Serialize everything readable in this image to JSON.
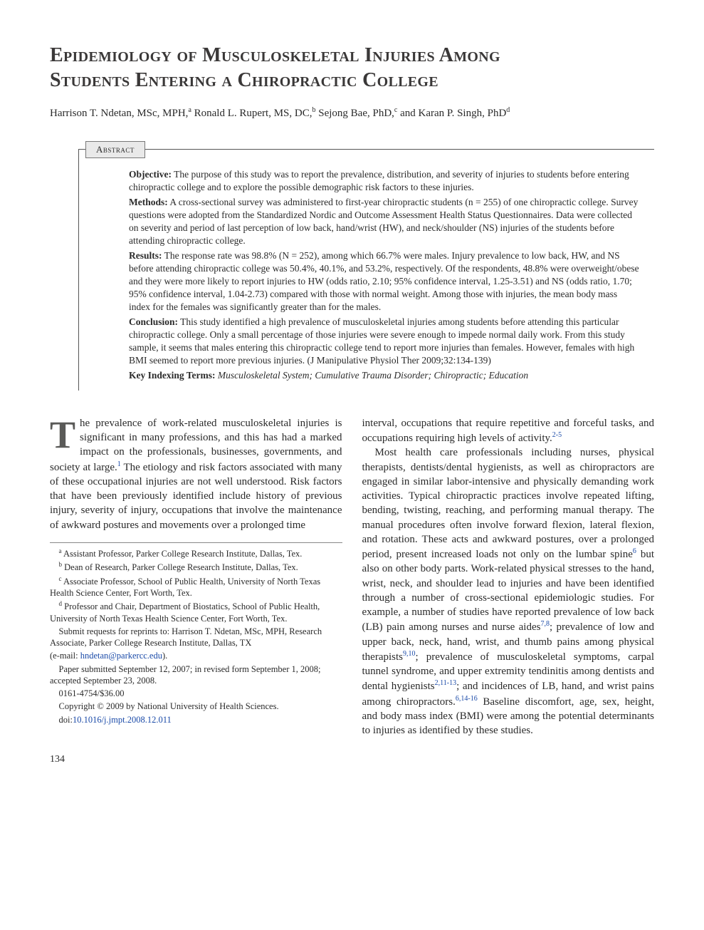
{
  "title_line1": "Epidemiology of Musculoskeletal Injuries Among",
  "title_line2": "Students Entering a Chiropractic College",
  "authors_html": "Harrison T. Ndetan, MSc, MPH,<sup>a</sup> Ronald L. Rupert, MS, DC,<sup>b</sup> Sejong Bae, PhD,<sup>c</sup> and Karan P. Singh, PhD<sup>d</sup>",
  "abstract_label": "Abstract",
  "abstract": {
    "objective_label": "Objective:",
    "objective": "The purpose of this study was to report the prevalence, distribution, and severity of injuries to students before entering chiropractic college and to explore the possible demographic risk factors to these injuries.",
    "methods_label": "Methods:",
    "methods": "A cross-sectional survey was administered to first-year chiropractic students (n = 255) of one chiropractic college. Survey questions were adopted from the Standardized Nordic and Outcome Assessment Health Status Questionnaires. Data were collected on severity and period of last perception of low back, hand/wrist (HW), and neck/shoulder (NS) injuries of the students before attending chiropractic college.",
    "results_label": "Results:",
    "results": "The response rate was 98.8% (N = 252), among which 66.7% were males. Injury prevalence to low back, HW, and NS before attending chiropractic college was 50.4%, 40.1%, and 53.2%, respectively. Of the respondents, 48.8% were overweight/obese and they were more likely to report injuries to HW (odds ratio, 2.10; 95% confidence interval, 1.25-3.51) and NS (odds ratio, 1.70; 95% confidence interval, 1.04-2.73) compared with those with normal weight. Among those with injuries, the mean body mass index for the females was significantly greater than for the males.",
    "conclusion_label": "Conclusion:",
    "conclusion": "This study identified a high prevalence of musculoskeletal injuries among students before attending this particular chiropractic college. Only a small percentage of those injuries were severe enough to impede normal daily work. From this study sample, it seems that males entering this chiropractic college tend to report more injuries than females. However, females with high BMI seemed to report more previous injuries. (J Manipulative Physiol Ther 2009;32:134-139)",
    "key_terms_label": "Key Indexing Terms:",
    "key_terms": "Musculoskeletal System; Cumulative Trauma Disorder; Chiropractic; Education"
  },
  "body": {
    "p1_html": "<span class=\"dropcap\">T</span>he prevalence of work-related musculoskeletal injuries is significant in many professions, and this has had a marked impact on the professionals, businesses, governments, and society at large.<span class=\"ref-sup\">1</span> The etiology and risk factors associated with many of these occupational injuries are not well understood. Risk factors that have been previously identified include history of previous injury, severity of injury, occupations that involve the maintenance of awkward postures and movements over a prolonged time",
    "p2_html": "interval, occupations that require repetitive and forceful tasks, and occupations requiring high levels of activity.<span class=\"ref-sup\">2-5</span>",
    "p3_html": "Most health care professionals including nurses, physical therapists, dentists/dental hygienists, as well as chiropractors are engaged in similar labor-intensive and physically demanding work activities. Typical chiropractic practices involve repeated lifting, bending, twisting, reaching, and performing manual therapy. The manual procedures often involve forward flexion, lateral flexion, and rotation. These acts and awkward postures, over a prolonged period, present increased loads not only on the lumbar spine<span class=\"ref-sup\">6</span> but also on other body parts. Work-related physical stresses to the hand, wrist, neck, and shoulder lead to injuries and have been identified through a number of cross-sectional epidemiologic studies. For example, a number of studies have reported prevalence of low back (LB) pain among nurses and nurse aides<span class=\"ref-sup\">7,8</span>; prevalence of low and upper back, neck, hand, wrist, and thumb pains among physical therapists<span class=\"ref-sup\">9,10</span>; prevalence of musculoskeletal symptoms, carpal tunnel syndrome, and upper extremity tendinitis among dentists and dental hygienists<span class=\"ref-sup\">2,11-13</span>; and incidences of LB, hand, and wrist pains among chiropractors.<span class=\"ref-sup\">6,14-16</span> Baseline discomfort, age, sex, height, and body mass index (BMI) were among the potential determinants to injuries as identified by these studies."
  },
  "footnotes": {
    "a": "Assistant Professor, Parker College Research Institute, Dallas, Tex.",
    "b": "Dean of Research, Parker College Research Institute, Dallas, Tex.",
    "c": "Associate Professor, School of Public Health, University of North Texas Health Science Center, Fort Worth, Tex.",
    "d": "Professor and Chair, Department of Biostatics, School of Public Health, University of North Texas Health Science Center, Fort Worth, Tex.",
    "reprint": "Submit requests for reprints to: Harrison T. Ndetan, MSc, MPH, Research Associate, Parker College Research Institute, Dallas, TX",
    "email_label": "(e-mail: ",
    "email": "hndetan@parkercc.edu",
    "email_close": ").",
    "submitted": "Paper submitted September 12, 2007; in revised form September 1, 2008; accepted September 23, 2008.",
    "issn": "0161-4754/$36.00",
    "copyright": "Copyright © 2009 by National University of Health Sciences.",
    "doi_label": "doi:",
    "doi": "10.1016/j.jmpt.2008.12.011"
  },
  "page_number": "134",
  "colors": {
    "title": "#3a3838",
    "link": "#1a4aa8",
    "rule": "#555555",
    "abstract_bg": "#e9e9e9"
  },
  "fonts": {
    "body_family": "Georgia, 'Times New Roman', serif",
    "title_size_pt": 21,
    "body_size_pt": 11,
    "abstract_size_pt": 10,
    "footnote_size_pt": 9
  }
}
